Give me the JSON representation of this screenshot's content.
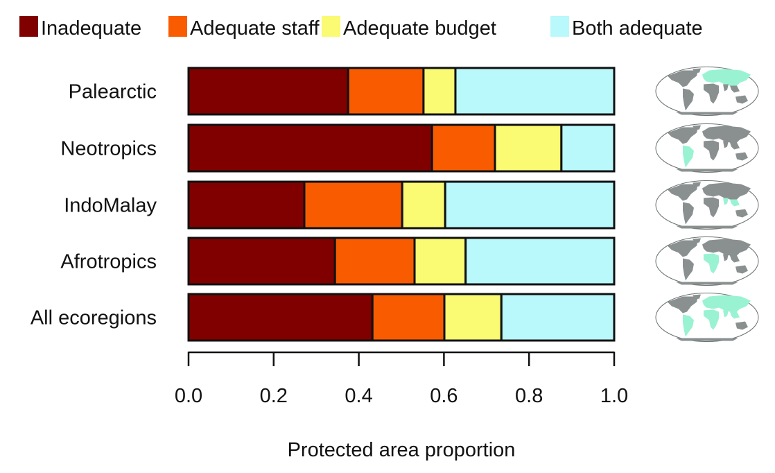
{
  "chart_data": {
    "type": "bar",
    "orientation": "horizontal",
    "stacked": true,
    "title": "",
    "xlabel": "Protected area proportion",
    "ylabel": "",
    "xlim": [
      0,
      1
    ],
    "x_ticks": [
      "0.0",
      "0.2",
      "0.4",
      "0.6",
      "0.8",
      "1.0"
    ],
    "x_tick_values": [
      0,
      0.2,
      0.4,
      0.6,
      0.8,
      1.0
    ],
    "grid": false,
    "legend_position": "top",
    "categories": [
      "Palearctic",
      "Neotropics",
      "IndoMalay",
      "Afrotropics",
      "All ecoregions"
    ],
    "series": [
      {
        "name": "Inadequate",
        "color": "#800000",
        "values": [
          0.375,
          0.572,
          0.272,
          0.344,
          0.432
        ]
      },
      {
        "name": "Adequate staff",
        "color": "#f95c00",
        "values": [
          0.177,
          0.148,
          0.23,
          0.187,
          0.169
        ]
      },
      {
        "name": "Adequate budget",
        "color": "#fafa73",
        "values": [
          0.075,
          0.156,
          0.101,
          0.12,
          0.134
        ]
      },
      {
        "name": "Both adequate",
        "color": "#b9f8fb",
        "values": [
          0.373,
          0.124,
          0.397,
          0.349,
          0.265
        ]
      }
    ],
    "region_maps": [
      "palearctic-map-icon",
      "neotropics-map-icon",
      "indomalay-map-icon",
      "afrotropics-map-icon",
      "all-ecoregions-map-icon"
    ]
  },
  "colors": {
    "map_land": "#8a9090",
    "map_highlight": "#99f3d3",
    "map_outline": "#6a7070"
  }
}
